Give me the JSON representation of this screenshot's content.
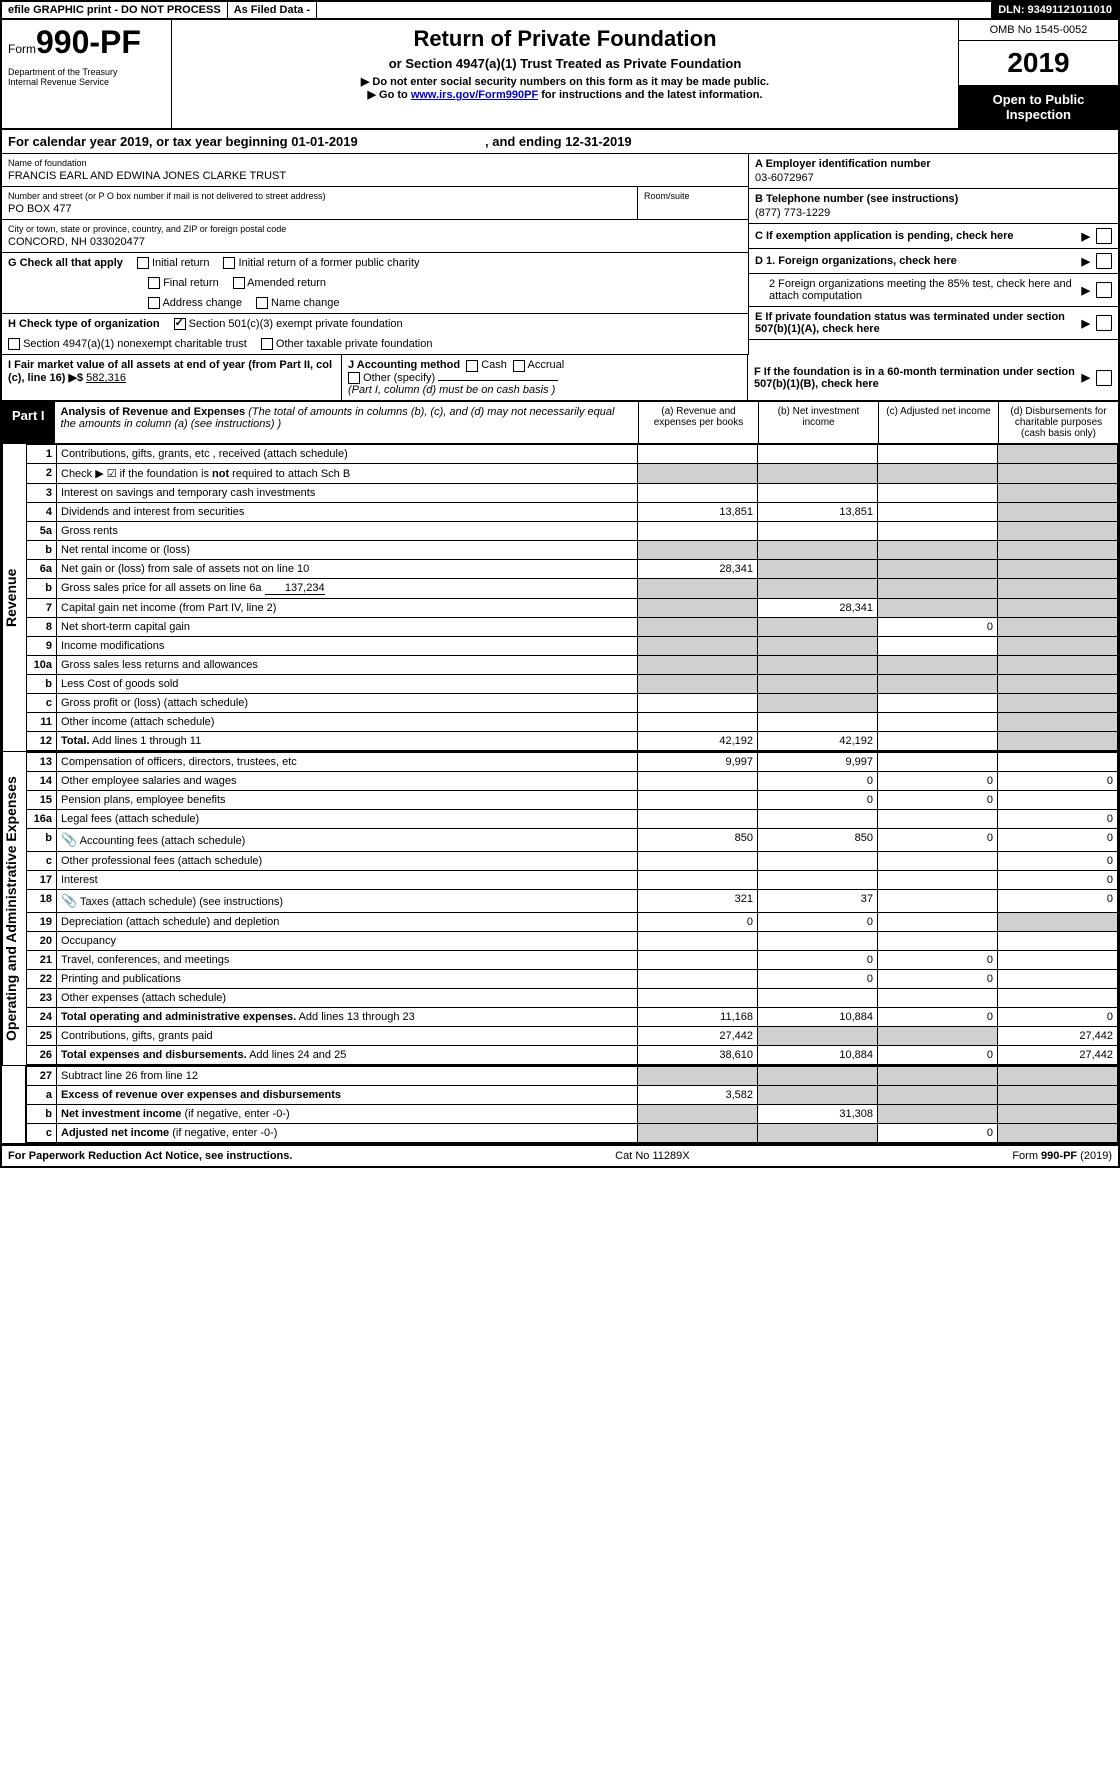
{
  "topbar": {
    "efile": "efile GRAPHIC print - DO NOT PROCESS",
    "asfiled": "As Filed Data -",
    "dln": "DLN: 93491121011010"
  },
  "header": {
    "form_prefix": "Form",
    "form_number": "990-PF",
    "dept": "Department of the Treasury\nInternal Revenue Service",
    "title": "Return of Private Foundation",
    "subtitle": "or Section 4947(a)(1) Trust Treated as Private Foundation",
    "note1": "▶ Do not enter social security numbers on this form as it may be made public.",
    "note2": "▶ Go to ",
    "link": "www.irs.gov/Form990PF",
    "note2b": " for instructions and the latest information.",
    "omb": "OMB No 1545-0052",
    "year": "2019",
    "open": "Open to Public Inspection"
  },
  "cal": {
    "text_a": "For calendar year 2019, or tax year beginning ",
    "begin": "01-01-2019",
    "text_b": ", and ending ",
    "end": "12-31-2019"
  },
  "info": {
    "name_lbl": "Name of foundation",
    "name": "FRANCIS EARL AND EDWINA JONES CLARKE TRUST",
    "addr_lbl": "Number and street (or P O  box number if mail is not delivered to street address)",
    "addr": "PO BOX 477",
    "room_lbl": "Room/suite",
    "city_lbl": "City or town, state or province, country, and ZIP or foreign postal code",
    "city": "CONCORD, NH  033020477",
    "a_lbl": "A Employer identification number",
    "a_val": "03-6072967",
    "b_lbl": "B Telephone number (see instructions)",
    "b_val": "(877) 773-1229",
    "c_lbl": "C If exemption application is pending, check here",
    "d1_lbl": "D 1. Foreign organizations, check here",
    "d2_lbl": "2  Foreign organizations meeting the 85% test, check here and attach computation",
    "e_lbl": "E  If private foundation status was terminated under section 507(b)(1)(A), check here",
    "f_lbl": "F  If the foundation is in a 60-month termination under section 507(b)(1)(B), check here"
  },
  "g": {
    "lbl": "G Check all that apply",
    "opts": [
      "Initial return",
      "Initial return of a former public charity",
      "Final return",
      "Amended return",
      "Address change",
      "Name change"
    ]
  },
  "h": {
    "lbl": "H Check type of organization",
    "opt1": "Section 501(c)(3) exempt private foundation",
    "opt2": "Section 4947(a)(1) nonexempt charitable trust",
    "opt3": "Other taxable private foundation"
  },
  "i": {
    "lbl": "I Fair market value of all assets at end of year (from Part II, col  (c), line 16)",
    "arrow": "▶$",
    "val": "582,316"
  },
  "j": {
    "lbl": "J Accounting method",
    "cash": "Cash",
    "accrual": "Accrual",
    "other": "Other (specify)",
    "note": "(Part I, column (d) must be on cash basis )"
  },
  "part1": {
    "tag": "Part I",
    "title": "Analysis of Revenue and Expenses",
    "desc": "(The total of amounts in columns (b), (c), and (d) may not necessarily equal the amounts in column (a) (see instructions) )",
    "col_a": "(a)  Revenue and expenses per books",
    "col_b": "(b)  Net investment income",
    "col_c": "(c)  Adjusted net income",
    "col_d": "(d)  Disbursements for charitable purposes (cash basis only)"
  },
  "rev_label": "Revenue",
  "exp_label": "Operating and Administrative Expenses",
  "rows": {
    "1": {
      "n": "1",
      "d": "Contributions, gifts, grants, etc , received (attach schedule)"
    },
    "2": {
      "n": "2",
      "d": "Check ▶ ☑ if the foundation is <b>not</b> required to attach Sch  B"
    },
    "3": {
      "n": "3",
      "d": "Interest on savings and temporary cash investments"
    },
    "4": {
      "n": "4",
      "d": "Dividends and interest from securities",
      "a": "13,851",
      "b": "13,851"
    },
    "5a": {
      "n": "5a",
      "d": "Gross rents"
    },
    "5b": {
      "n": "b",
      "d": "Net rental income or (loss)"
    },
    "6a": {
      "n": "6a",
      "d": "Net gain or (loss) from sale of assets not on line 10",
      "a": "28,341"
    },
    "6b": {
      "n": "b",
      "d": "Gross sales price for all assets on line 6a",
      "inline": "137,234"
    },
    "7": {
      "n": "7",
      "d": "Capital gain net income (from Part IV, line 2)",
      "b": "28,341"
    },
    "8": {
      "n": "8",
      "d": "Net short-term capital gain",
      "c": "0"
    },
    "9": {
      "n": "9",
      "d": "Income modifications"
    },
    "10a": {
      "n": "10a",
      "d": "Gross sales less returns and allowances"
    },
    "10b": {
      "n": "b",
      "d": "Less  Cost of goods sold"
    },
    "10c": {
      "n": "c",
      "d": "Gross profit or (loss) (attach schedule)"
    },
    "11": {
      "n": "11",
      "d": "Other income (attach schedule)"
    },
    "12": {
      "n": "12",
      "d": "<b>Total.</b> Add lines 1 through 11",
      "a": "42,192",
      "b": "42,192"
    },
    "13": {
      "n": "13",
      "d": "Compensation of officers, directors, trustees, etc",
      "a": "9,997",
      "b": "9,997"
    },
    "14": {
      "n": "14",
      "d": "Other employee salaries and wages",
      "b": "0",
      "c": "0",
      "dd": "0"
    },
    "15": {
      "n": "15",
      "d": "Pension plans, employee benefits",
      "b": "0",
      "c": "0"
    },
    "16a": {
      "n": "16a",
      "d": "Legal fees (attach schedule)",
      "dd": "0"
    },
    "16b": {
      "n": "b",
      "d": "Accounting fees (attach schedule)",
      "icon": true,
      "a": "850",
      "b": "850",
      "c": "0",
      "dd": "0"
    },
    "16c": {
      "n": "c",
      "d": "Other professional fees (attach schedule)",
      "dd": "0"
    },
    "17": {
      "n": "17",
      "d": "Interest",
      "dd": "0"
    },
    "18": {
      "n": "18",
      "d": "Taxes (attach schedule) (see instructions)",
      "icon": true,
      "a": "321",
      "b": "37",
      "dd": "0"
    },
    "19": {
      "n": "19",
      "d": "Depreciation (attach schedule) and depletion",
      "a": "0",
      "b": "0"
    },
    "20": {
      "n": "20",
      "d": "Occupancy"
    },
    "21": {
      "n": "21",
      "d": "Travel, conferences, and meetings",
      "b": "0",
      "c": "0"
    },
    "22": {
      "n": "22",
      "d": "Printing and publications",
      "b": "0",
      "c": "0"
    },
    "23": {
      "n": "23",
      "d": "Other expenses (attach schedule)"
    },
    "24": {
      "n": "24",
      "d": "<b>Total operating and administrative expenses.</b> Add lines 13 through 23",
      "a": "11,168",
      "b": "10,884",
      "c": "0",
      "dd": "0"
    },
    "25": {
      "n": "25",
      "d": "Contributions, gifts, grants paid",
      "a": "27,442",
      "dd": "27,442"
    },
    "26": {
      "n": "26",
      "d": "<b>Total expenses and disbursements.</b> Add lines 24 and 25",
      "a": "38,610",
      "b": "10,884",
      "c": "0",
      "dd": "27,442"
    },
    "27": {
      "n": "27",
      "d": "Subtract line 26 from line 12"
    },
    "27a": {
      "n": "a",
      "d": "<b>Excess of revenue over expenses and disbursements</b>",
      "a": "3,582"
    },
    "27b": {
      "n": "b",
      "d": "<b>Net investment income</b> (if negative, enter -0-)",
      "b": "31,308"
    },
    "27c": {
      "n": "c",
      "d": "<b>Adjusted net income</b> (if negative, enter -0-)",
      "c": "0"
    }
  },
  "footer": {
    "left": "For Paperwork Reduction Act Notice, see instructions.",
    "mid": "Cat  No  11289X",
    "right": "Form 990-PF (2019)"
  }
}
